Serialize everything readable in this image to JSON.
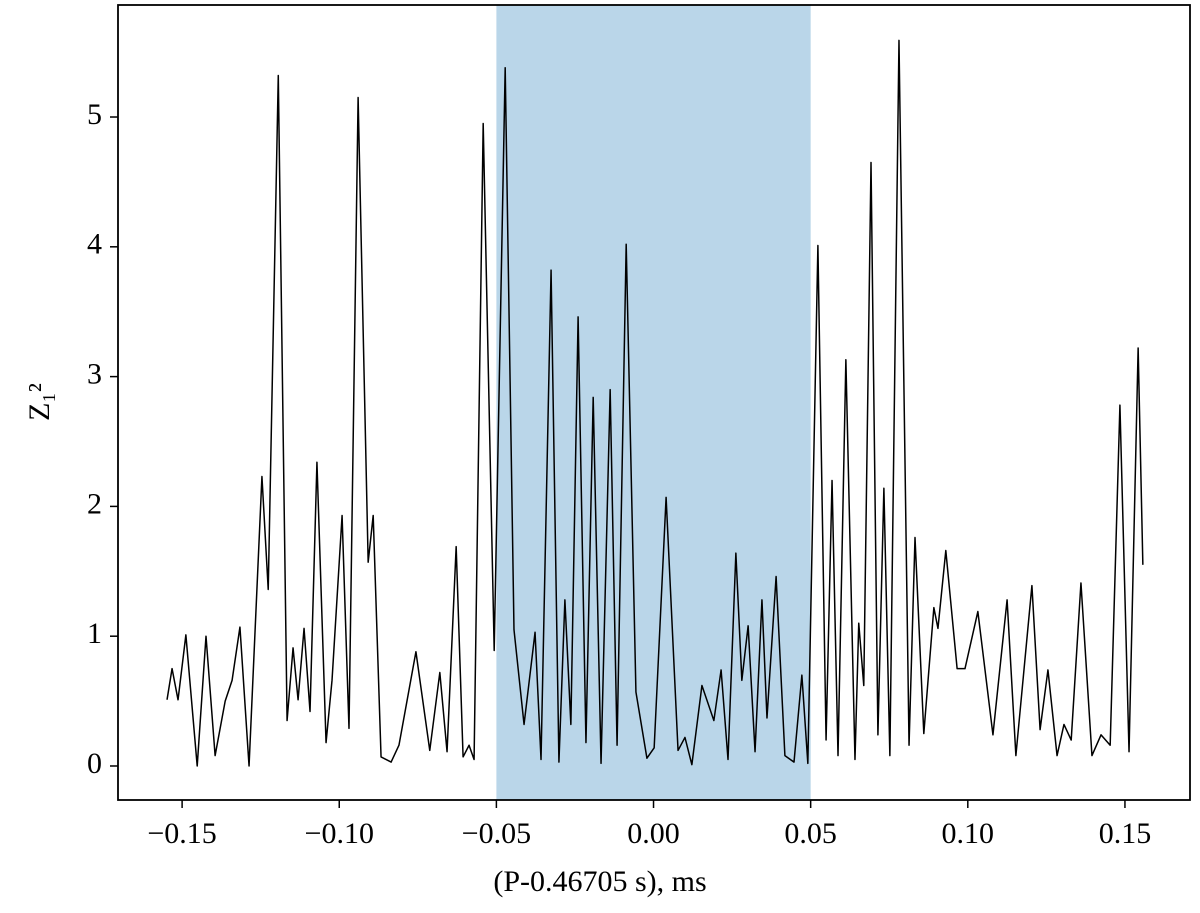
{
  "chart_data": {
    "type": "line",
    "xlabel": "(P-0.46705 s), ms",
    "ylabel": "Z₁²",
    "xlim": [
      -0.1704,
      0.1707
    ],
    "ylim": [
      -0.262,
      5.863
    ],
    "xticks": [
      {
        "value": -0.15,
        "label": "−0.15"
      },
      {
        "value": -0.1,
        "label": "−0.10"
      },
      {
        "value": -0.05,
        "label": "−0.05"
      },
      {
        "value": 0,
        "label": "0.00"
      },
      0.05,
      {
        "value": 0.1,
        "label": "0.10"
      },
      0.15
    ],
    "yticks": [
      0,
      1,
      2,
      3,
      4,
      5
    ],
    "span": [
      -0.05,
      0.05
    ],
    "span_color": "#bad6e9",
    "series": [
      {
        "color": "#000000",
        "x": [
          -0.1548,
          -0.1532,
          -0.1513,
          -0.1488,
          -0.1452,
          -0.1424,
          -0.1395,
          -0.1363,
          -0.1341,
          -0.1316,
          -0.1287,
          -0.1246,
          -0.1226,
          -0.1194,
          -0.1166,
          -0.1147,
          -0.1131,
          -0.1112,
          -0.1093,
          -0.1071,
          -0.1042,
          -0.1023,
          -0.0991,
          -0.0969,
          -0.094,
          -0.0908,
          -0.0892,
          -0.0867,
          -0.0835,
          -0.081,
          -0.0756,
          -0.0712,
          -0.068,
          -0.0657,
          -0.0628,
          -0.0606,
          -0.0587,
          -0.0571,
          -0.0542,
          -0.0507,
          -0.0472,
          -0.0444,
          -0.0412,
          -0.0377,
          -0.0358,
          -0.0326,
          -0.0301,
          -0.0282,
          -0.0263,
          -0.024,
          -0.0215,
          -0.0192,
          -0.0167,
          -0.0138,
          -0.0116,
          -0.0087,
          -0.0056,
          -0.0021,
          0.0002,
          0.004,
          0.0078,
          0.01,
          0.0122,
          0.0154,
          0.0192,
          0.0215,
          0.0237,
          0.0262,
          0.0281,
          0.0301,
          0.0323,
          0.0345,
          0.0361,
          0.039,
          0.0418,
          0.0447,
          0.0472,
          0.0491,
          0.0523,
          0.0549,
          0.0568,
          0.0587,
          0.0612,
          0.0641,
          0.0653,
          0.0669,
          0.0692,
          0.0714,
          0.0733,
          0.0752,
          0.0781,
          0.0813,
          0.0832,
          0.086,
          0.0892,
          0.0905,
          0.093,
          0.0966,
          0.0991,
          0.1032,
          0.108,
          0.1125,
          0.1153,
          0.1204,
          0.123,
          0.1255,
          0.1284,
          0.1306,
          0.1329,
          0.136,
          0.1395,
          0.1424,
          0.1453,
          0.1484,
          0.1513,
          0.1542,
          0.1557
        ],
        "values": [
          0.51,
          0.75,
          0.51,
          1.01,
          0,
          1,
          0.08,
          0.5,
          0.66,
          1.07,
          0,
          2.23,
          1.36,
          5.32,
          0.35,
          0.91,
          0.51,
          1.06,
          0.42,
          2.34,
          0.18,
          0.66,
          1.93,
          0.29,
          5.15,
          1.57,
          1.93,
          0.07,
          0.03,
          0.16,
          0.88,
          0.12,
          0.72,
          0.11,
          1.69,
          0.07,
          0.16,
          0.05,
          4.95,
          0.89,
          5.38,
          1.05,
          0.32,
          1.03,
          0.05,
          3.82,
          0.03,
          1.28,
          0.32,
          3.46,
          0.18,
          2.84,
          0.02,
          2.9,
          0.16,
          4.02,
          0.57,
          0.06,
          0.14,
          2.07,
          0.12,
          0.22,
          0.01,
          0.62,
          0.35,
          0.74,
          0.05,
          1.64,
          0.66,
          1.08,
          0.11,
          1.28,
          0.37,
          1.46,
          0.08,
          0.03,
          0.7,
          0.02,
          4.01,
          0.2,
          2.2,
          0.08,
          3.13,
          0.05,
          1.1,
          0.62,
          4.65,
          0.24,
          2.14,
          0.08,
          5.59,
          0.16,
          1.76,
          0.25,
          1.22,
          1.06,
          1.66,
          0.75,
          0.75,
          1.19,
          0.24,
          1.28,
          0.08,
          1.39,
          0.28,
          0.74,
          0.08,
          0.32,
          0.2,
          1.41,
          0.08,
          0.24,
          0.16,
          2.78,
          0.11,
          3.22,
          1.55
        ]
      }
    ]
  }
}
